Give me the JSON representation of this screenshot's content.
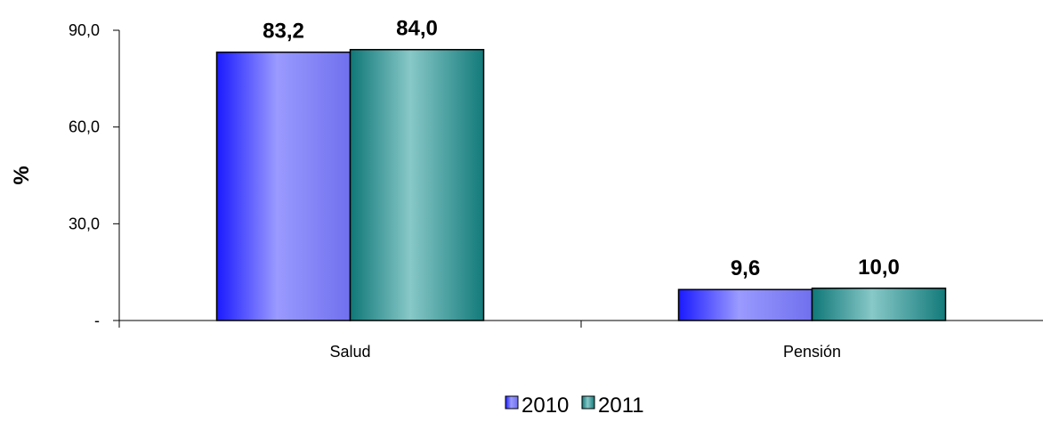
{
  "chart_data": {
    "type": "bar",
    "categories": [
      "Salud",
      "Pensión"
    ],
    "series": [
      {
        "name": "2010",
        "values": [
          83.2,
          9.6
        ],
        "labels": [
          "83,2",
          "9,6"
        ],
        "color": "#8080ff"
      },
      {
        "name": "2011",
        "values": [
          84.0,
          10.0
        ],
        "labels": [
          "84,0",
          "10,0"
        ],
        "color": "#7fbfbf"
      }
    ],
    "ylabel": "%",
    "ylim": [
      0,
      90
    ],
    "yticks": [
      {
        "value": 0,
        "label": "-"
      },
      {
        "value": 30,
        "label": "30,0"
      },
      {
        "value": 60,
        "label": "60,0"
      },
      {
        "value": 90,
        "label": "90,0"
      }
    ],
    "grid": false,
    "legend_position": "bottom-center"
  }
}
